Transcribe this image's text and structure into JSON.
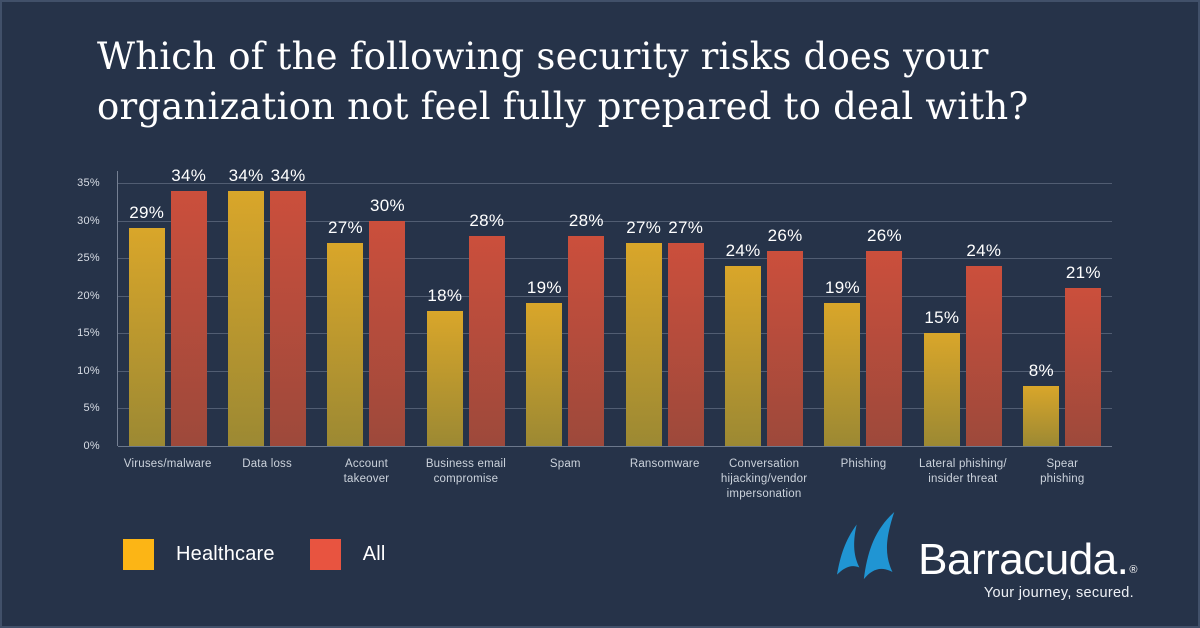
{
  "page": {
    "background_color": "#263349",
    "frame_border_color": "#3e4e68"
  },
  "title": {
    "line1": "Which of the following security risks does your",
    "line2": "organization not feel fully prepared to deal with?",
    "full": "Which of the following security risks does your organization not feel fully prepared to deal with?"
  },
  "chart_data": {
    "type": "bar",
    "categories": [
      "Viruses/malware",
      "Data loss",
      "Account takeover",
      "Business email compromise",
      "Spam",
      "Ransomware",
      "Conversation hijacking/vendor impersonation",
      "Phishing",
      "Lateral phishing/insider threat",
      "Spear phishing"
    ],
    "category_labels": [
      "Viruses/malware",
      "Data loss",
      "Account\ntakeover",
      "Business email\ncompromise",
      "Spam",
      "Ransomware",
      "Conversation\nhijacking/vendor\nimpersonation",
      "Phishing",
      "Lateral phishing/\ninsider threat",
      "Spear\nphishing"
    ],
    "series": [
      {
        "name": "Healthcare",
        "values": [
          29,
          34,
          27,
          18,
          19,
          27,
          24,
          19,
          15,
          8
        ],
        "labels": [
          "29%",
          "34%",
          "27%",
          "18%",
          "19%",
          "27%",
          "24%",
          "19%",
          "15%",
          "8%"
        ],
        "color_top": "#d9a62a",
        "color_bottom": "#9c8933",
        "legend_color": "#fcb515"
      },
      {
        "name": "All",
        "values": [
          34,
          34,
          30,
          28,
          28,
          27,
          26,
          26,
          24,
          21
        ],
        "labels": [
          "34%",
          "34%",
          "30%",
          "28%",
          "28%",
          "27%",
          "26%",
          "26%",
          "24%",
          "21%"
        ],
        "color_top": "#cb4f3c",
        "color_bottom": "#9d493b",
        "legend_color": "#e85440"
      }
    ],
    "y_ticks": [
      "0%",
      "5%",
      "10%",
      "15%",
      "20%",
      "25%",
      "30%",
      "35%"
    ],
    "ylim": [
      0,
      35
    ],
    "grid": true,
    "legend_position": "bottom-left",
    "value_suffix": "%"
  },
  "legend": {
    "items": [
      {
        "label": "Healthcare",
        "color": "#fcb515"
      },
      {
        "label": "All",
        "color": "#e85440"
      }
    ]
  },
  "logo": {
    "brand": "Barracuda.",
    "registered": "®",
    "tagline": "Your journey, secured.",
    "fin_color": "#2095d3",
    "text_color": "#ffffff"
  }
}
